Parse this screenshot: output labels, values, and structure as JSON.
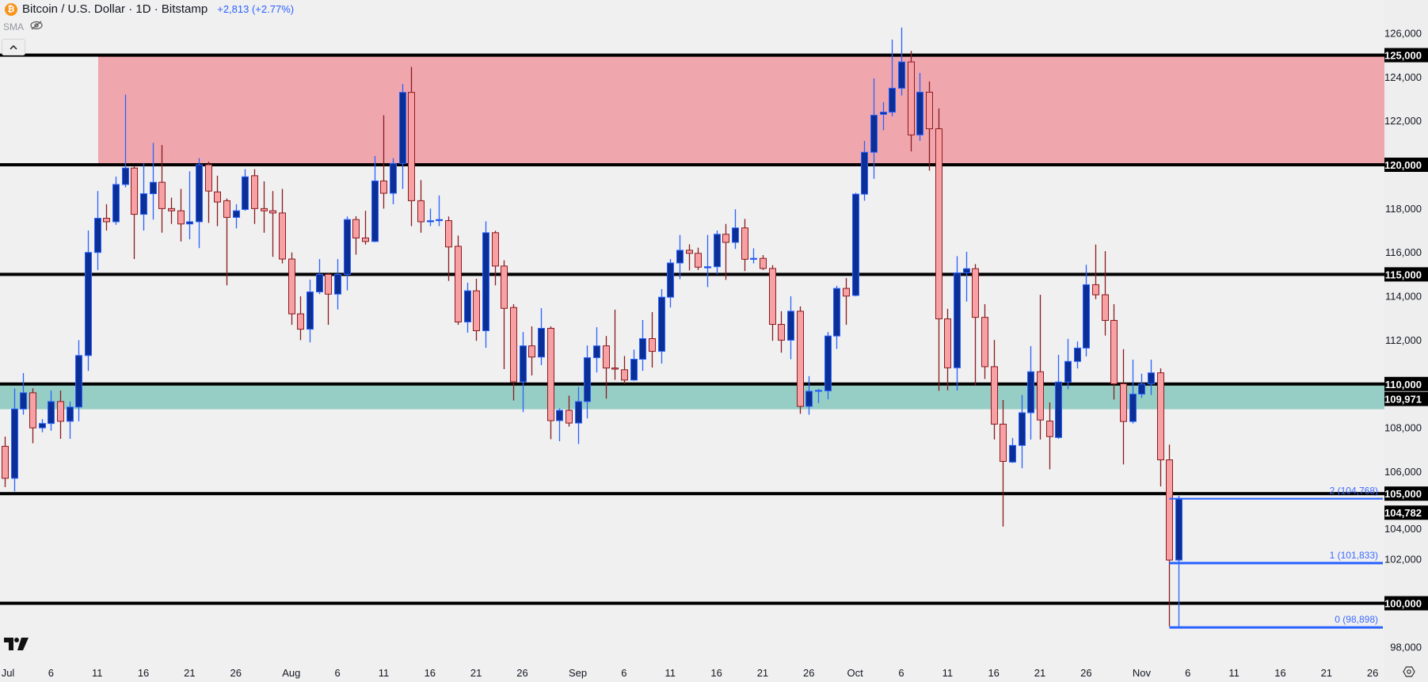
{
  "header": {
    "title": "Bitcoin / U.S. Dollar · 1D · Bitstamp",
    "change": "+2,813 (+2.77%)",
    "coin_icon": "bitcoin-icon",
    "indicator": "SMA",
    "indicator_icon": "eye-crossed-icon"
  },
  "colors": {
    "up_body": "#0c2f96",
    "up_border": "#2962ff",
    "down_body": "#f7a1a4",
    "down_border": "#8b1a1f",
    "resistance_zone": "#f0a6ad",
    "support_zone": "#96cec5",
    "level_line": "#000000",
    "fib": "#2962ff",
    "background": "#f0f0f0"
  },
  "chart_data": {
    "type": "candlestick",
    "symbol": "Bitcoin / U.S. Dollar",
    "interval": "1D",
    "exchange": "Bitstamp",
    "ylim": [
      97000,
      126800
    ],
    "grid": false,
    "y_ticks": [
      "126,000",
      "124,000",
      "122,000",
      "120,000",
      "118,000",
      "116,000",
      "114,000",
      "112,000",
      "108,000",
      "106,000",
      "104,000",
      "102,000",
      "98,000"
    ],
    "y_tick_values": [
      126000,
      124000,
      122000,
      120000,
      118000,
      116000,
      114000,
      112000,
      108000,
      106000,
      104000,
      102000,
      98000
    ],
    "x_ticks": [
      {
        "label": "Jul",
        "date": "Jul 1"
      },
      {
        "label": "6",
        "date": "Jul 6"
      },
      {
        "label": "11",
        "date": "Jul 11"
      },
      {
        "label": "16",
        "date": "Jul 16"
      },
      {
        "label": "21",
        "date": "Jul 21"
      },
      {
        "label": "26",
        "date": "Jul 26"
      },
      {
        "label": "Aug",
        "date": "Aug 1"
      },
      {
        "label": "6",
        "date": "Aug 6"
      },
      {
        "label": "11",
        "date": "Aug 11"
      },
      {
        "label": "16",
        "date": "Aug 16"
      },
      {
        "label": "21",
        "date": "Aug 21"
      },
      {
        "label": "26",
        "date": "Aug 26"
      },
      {
        "label": "Sep",
        "date": "Sep 1"
      },
      {
        "label": "6",
        "date": "Sep 6"
      },
      {
        "label": "11",
        "date": "Sep 11"
      },
      {
        "label": "16",
        "date": "Sep 16"
      },
      {
        "label": "21",
        "date": "Sep 21"
      },
      {
        "label": "26",
        "date": "Sep 26"
      },
      {
        "label": "Oct",
        "date": "Oct 1"
      },
      {
        "label": "6",
        "date": "Oct 6"
      },
      {
        "label": "11",
        "date": "Oct 11"
      },
      {
        "label": "16",
        "date": "Oct 16"
      },
      {
        "label": "21",
        "date": "Oct 21"
      },
      {
        "label": "26",
        "date": "Oct 26"
      },
      {
        "label": "Nov",
        "date": "Nov 1"
      },
      {
        "label": "6",
        "date": "Nov 6"
      },
      {
        "label": "11",
        "date": "Nov 11"
      },
      {
        "label": "16",
        "date": "Nov 16"
      },
      {
        "label": "21",
        "date": "Nov 21"
      },
      {
        "label": "26",
        "date": "Nov 26"
      }
    ],
    "levels": [
      {
        "value": 125000,
        "label": "125,000"
      },
      {
        "value": 120000,
        "label": "120,000"
      },
      {
        "value": 115000,
        "label": "115,000"
      },
      {
        "value": 110000,
        "label": "110,000"
      },
      {
        "value": 105000,
        "label": "105,000"
      },
      {
        "value": 100000,
        "label": "100,000"
      }
    ],
    "extra_price_labels": [
      {
        "value": 109971,
        "label": "109,971"
      },
      {
        "value": 104782,
        "label": "104,782"
      }
    ],
    "zones": [
      {
        "name": "resistance",
        "from": 120000,
        "to": 125000,
        "start": "Jul 11"
      },
      {
        "name": "support",
        "from": 108850,
        "to": 110000,
        "start": "Jul 1"
      }
    ],
    "fib_extension": {
      "start": "Nov 4",
      "levels": [
        {
          "ratio": "0",
          "value": 98898,
          "label": "0 (98,898)"
        },
        {
          "ratio": "1",
          "value": 101833,
          "label": "1 (101,833)"
        },
        {
          "ratio": "2",
          "value": 104768,
          "label": "2 (104,768)"
        }
      ]
    },
    "last_price": 104782,
    "candles_fields": [
      "date",
      "open",
      "high",
      "low",
      "close"
    ],
    "candles": [
      [
        "Jul 1",
        107160,
        107600,
        105300,
        105700
      ],
      [
        "Jul 2",
        105700,
        109800,
        105100,
        108860
      ],
      [
        "Jul 3",
        108860,
        110500,
        108600,
        109600
      ],
      [
        "Jul 4",
        109600,
        109800,
        107300,
        108000
      ],
      [
        "Jul 5",
        108000,
        108400,
        107800,
        108200
      ],
      [
        "Jul 6",
        108200,
        109700,
        107870,
        109200
      ],
      [
        "Jul 7",
        109200,
        109700,
        107500,
        108300
      ],
      [
        "Jul 8",
        108300,
        109200,
        107500,
        108950
      ],
      [
        "Jul 9",
        108950,
        112000,
        108300,
        111300
      ],
      [
        "Jul 10",
        111300,
        117000,
        110600,
        116000
      ],
      [
        "Jul 11",
        116000,
        118800,
        115200,
        117560
      ],
      [
        "Jul 12",
        117560,
        118200,
        117000,
        117400
      ],
      [
        "Jul 13",
        117400,
        119460,
        117260,
        119100
      ],
      [
        "Jul 14",
        119100,
        123200,
        118970,
        119850
      ],
      [
        "Jul 15",
        119850,
        119940,
        115700,
        117740
      ],
      [
        "Jul 16",
        117740,
        120060,
        117000,
        118680
      ],
      [
        "Jul 17",
        118680,
        121000,
        117500,
        119200
      ],
      [
        "Jul 18",
        119200,
        120900,
        116900,
        118000
      ],
      [
        "Jul 19",
        118000,
        118500,
        117300,
        117900
      ],
      [
        "Jul 20",
        117900,
        118900,
        116500,
        117300
      ],
      [
        "Jul 21",
        117300,
        119700,
        116600,
        117400
      ],
      [
        "Jul 22",
        117400,
        120300,
        116200,
        120000
      ],
      [
        "Jul 23",
        120000,
        120140,
        117350,
        118800
      ],
      [
        "Jul 24",
        118760,
        119500,
        117200,
        118300
      ],
      [
        "Jul 25",
        118360,
        118460,
        114500,
        117600
      ],
      [
        "Jul 26",
        117600,
        118200,
        117100,
        117900
      ],
      [
        "Jul 27",
        117960,
        119800,
        117900,
        119450
      ],
      [
        "Jul 28",
        119500,
        119800,
        117300,
        118000
      ],
      [
        "Jul 29",
        118000,
        119240,
        116900,
        117900
      ],
      [
        "Jul 30",
        117900,
        118800,
        115800,
        117800
      ],
      [
        "Jul 31",
        117800,
        118900,
        115500,
        115700
      ],
      [
        "Aug 1",
        115700,
        116000,
        112700,
        113200
      ],
      [
        "Aug 2",
        113200,
        114000,
        112000,
        112500
      ],
      [
        "Aug 3",
        112500,
        114760,
        111900,
        114200
      ],
      [
        "Aug 4",
        114200,
        115700,
        114100,
        115000
      ],
      [
        "Aug 5",
        115000,
        115050,
        112700,
        114100
      ],
      [
        "Aug 6",
        114100,
        115700,
        113400,
        115000
      ],
      [
        "Aug 7",
        115000,
        117640,
        114270,
        117500
      ],
      [
        "Aug 8",
        117500,
        117650,
        115900,
        116660
      ],
      [
        "Aug 9",
        116660,
        117900,
        116360,
        116500
      ],
      [
        "Aug 10",
        116500,
        120400,
        116470,
        119260
      ],
      [
        "Aug 11",
        119260,
        122260,
        118000,
        118700
      ],
      [
        "Aug 12",
        118700,
        120300,
        118200,
        120060
      ],
      [
        "Aug 13",
        120060,
        123680,
        118900,
        123300
      ],
      [
        "Aug 14",
        123300,
        124460,
        117200,
        118360
      ],
      [
        "Aug 15",
        118360,
        119300,
        116900,
        117400
      ],
      [
        "Aug 16",
        117400,
        118000,
        117200,
        117450
      ],
      [
        "Aug 17",
        117450,
        118600,
        117200,
        117500
      ],
      [
        "Aug 18",
        117450,
        117640,
        114700,
        116250
      ],
      [
        "Aug 19",
        116280,
        116770,
        112700,
        112830
      ],
      [
        "Aug 20",
        112830,
        114620,
        112340,
        114250
      ],
      [
        "Aug 21",
        114250,
        114800,
        111970,
        112430
      ],
      [
        "Aug 22",
        112430,
        117420,
        111650,
        116900
      ],
      [
        "Aug 23",
        116900,
        116990,
        114500,
        115380
      ],
      [
        "Aug 24",
        115380,
        115640,
        110680,
        113450
      ],
      [
        "Aug 25",
        113490,
        113640,
        109250,
        110100
      ],
      [
        "Aug 26",
        110100,
        112370,
        108720,
        111740
      ],
      [
        "Aug 27",
        111740,
        112630,
        110390,
        111230
      ],
      [
        "Aug 28",
        111230,
        113460,
        110860,
        112540
      ],
      [
        "Aug 29",
        112540,
        112630,
        107480,
        108330
      ],
      [
        "Aug 30",
        108330,
        108890,
        107390,
        108800
      ],
      [
        "Aug 31",
        108800,
        109470,
        108060,
        108220
      ],
      [
        "Sep 1",
        108220,
        109870,
        107260,
        109200
      ],
      [
        "Sep 2",
        109200,
        111760,
        108430,
        111200
      ],
      [
        "Sep 3",
        111200,
        112590,
        110530,
        111740
      ],
      [
        "Sep 4",
        111740,
        112190,
        109330,
        110730
      ],
      [
        "Sep 5",
        110730,
        113390,
        110190,
        110680
      ],
      [
        "Sep 6",
        110650,
        111280,
        110000,
        110180
      ],
      [
        "Sep 7",
        110180,
        111570,
        110150,
        111130
      ],
      [
        "Sep 8",
        111130,
        112920,
        110600,
        112070
      ],
      [
        "Sep 9",
        112070,
        113280,
        110750,
        111490
      ],
      [
        "Sep 10",
        111490,
        114330,
        110930,
        113960
      ],
      [
        "Sep 11",
        113960,
        115700,
        113490,
        115520
      ],
      [
        "Sep 12",
        115520,
        116800,
        114780,
        116100
      ],
      [
        "Sep 13",
        116100,
        116370,
        115180,
        115960
      ],
      [
        "Sep 14",
        115960,
        116220,
        115200,
        115330
      ],
      [
        "Sep 15",
        115300,
        116800,
        114420,
        115350
      ],
      [
        "Sep 16",
        115350,
        117000,
        115000,
        116830
      ],
      [
        "Sep 17",
        116830,
        117300,
        114750,
        116460
      ],
      [
        "Sep 18",
        116460,
        117970,
        116160,
        117120
      ],
      [
        "Sep 19",
        117120,
        117530,
        115150,
        115690
      ],
      [
        "Sep 20",
        115690,
        116190,
        115500,
        115730
      ],
      [
        "Sep 21",
        115730,
        115880,
        115200,
        115270
      ],
      [
        "Sep 22",
        115270,
        115420,
        111970,
        112720
      ],
      [
        "Sep 23",
        112720,
        113320,
        111430,
        112000
      ],
      [
        "Sep 24",
        112000,
        114000,
        111130,
        113320
      ],
      [
        "Sep 25",
        113320,
        113540,
        108640,
        108980
      ],
      [
        "Sep 26",
        108980,
        110360,
        108600,
        109670
      ],
      [
        "Sep 27",
        109690,
        109780,
        109130,
        109710
      ],
      [
        "Sep 28",
        109690,
        112370,
        109300,
        112190
      ],
      [
        "Sep 29",
        112190,
        114480,
        111600,
        114360
      ],
      [
        "Sep 30",
        114360,
        114830,
        112700,
        114010
      ],
      [
        "Oct 1",
        114040,
        118720,
        114000,
        118660
      ],
      [
        "Oct 2",
        118660,
        121090,
        118360,
        120570
      ],
      [
        "Oct 3",
        120570,
        123940,
        119360,
        122260
      ],
      [
        "Oct 4",
        122300,
        122860,
        121570,
        122400
      ],
      [
        "Oct 5",
        122400,
        125710,
        122210,
        123490
      ],
      [
        "Oct 6",
        123490,
        126260,
        123160,
        124690
      ],
      [
        "Oct 7",
        124690,
        125190,
        120610,
        121360
      ],
      [
        "Oct 8",
        121360,
        124190,
        121090,
        123310
      ],
      [
        "Oct 9",
        123310,
        123800,
        119730,
        121640
      ],
      [
        "Oct 10",
        121640,
        122570,
        109690,
        112970
      ],
      [
        "Oct 11",
        112970,
        113430,
        109710,
        110740
      ],
      [
        "Oct 12",
        110740,
        115830,
        109710,
        115070
      ],
      [
        "Oct 13",
        115070,
        116030,
        113760,
        115260
      ],
      [
        "Oct 14",
        115260,
        115470,
        109930,
        113040
      ],
      [
        "Oct 15",
        113040,
        113640,
        110230,
        110790
      ],
      [
        "Oct 16",
        110790,
        112010,
        107470,
        108170
      ],
      [
        "Oct 17",
        108170,
        109270,
        103500,
        106470
      ],
      [
        "Oct 18",
        106440,
        107540,
        106400,
        107200
      ],
      [
        "Oct 19",
        107200,
        109500,
        106160,
        108690
      ],
      [
        "Oct 20",
        108690,
        111730,
        107470,
        110560
      ],
      [
        "Oct 21",
        110560,
        114070,
        107470,
        108360
      ],
      [
        "Oct 22",
        108310,
        109160,
        106110,
        107600
      ],
      [
        "Oct 23",
        107560,
        111330,
        107500,
        110090
      ],
      [
        "Oct 24",
        110090,
        112060,
        109760,
        111030
      ],
      [
        "Oct 25",
        111030,
        111940,
        110710,
        111640
      ],
      [
        "Oct 26",
        111640,
        115440,
        111260,
        114530
      ],
      [
        "Oct 27",
        114530,
        116360,
        113870,
        114070
      ],
      [
        "Oct 28",
        114070,
        116060,
        112210,
        112900
      ],
      [
        "Oct 29",
        112900,
        113640,
        109290,
        110010
      ],
      [
        "Oct 30",
        110010,
        111590,
        106330,
        108290
      ],
      [
        "Oct 31",
        108290,
        111110,
        108200,
        109540
      ],
      [
        "Nov 1",
        109540,
        110470,
        109370,
        110000
      ],
      [
        "Nov 2",
        110000,
        111110,
        109500,
        110510
      ],
      [
        "Nov 3",
        110510,
        110710,
        105330,
        106540
      ],
      [
        "Nov 4",
        106540,
        107240,
        98950,
        101970
      ],
      [
        "Nov 5",
        101970,
        104900,
        98898,
        104782
      ]
    ]
  }
}
